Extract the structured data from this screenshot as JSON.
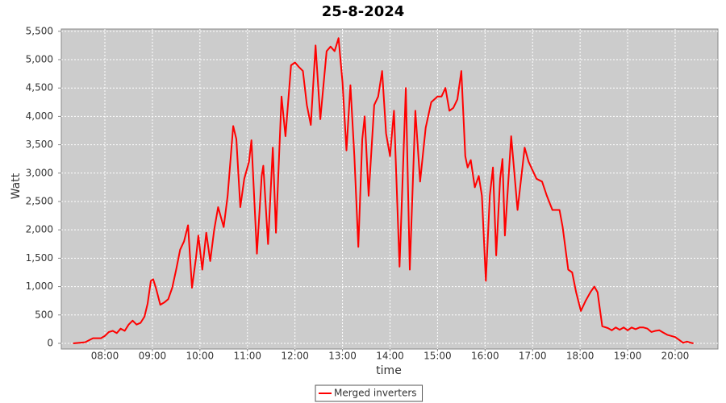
{
  "chart_data": {
    "type": "line",
    "title": "25-8-2024",
    "x_label": "time",
    "y_label": "Watt",
    "x": [
      "07:20",
      "07:35",
      "07:45",
      "07:55",
      "08:00",
      "08:05",
      "08:10",
      "08:15",
      "08:20",
      "08:25",
      "08:30",
      "08:35",
      "08:40",
      "08:45",
      "08:50",
      "08:54",
      "08:58",
      "09:01",
      "09:05",
      "09:10",
      "09:15",
      "09:20",
      "09:25",
      "09:30",
      "09:35",
      "09:40",
      "09:45",
      "09:50",
      "09:55",
      "09:58",
      "10:03",
      "10:08",
      "10:13",
      "10:18",
      "10:23",
      "10:30",
      "10:35",
      "10:42",
      "10:46",
      "10:51",
      "10:56",
      "11:02",
      "11:05",
      "11:12",
      "11:18",
      "11:20",
      "11:26",
      "11:32",
      "11:36",
      "11:43",
      "11:48",
      "11:55",
      "12:00",
      "12:05",
      "12:10",
      "12:15",
      "12:20",
      "12:26",
      "12:32",
      "12:40",
      "12:45",
      "12:50",
      "12:55",
      "13:00",
      "13:05",
      "13:10",
      "13:15",
      "13:20",
      "13:25",
      "13:28",
      "13:33",
      "13:40",
      "13:45",
      "13:50",
      "13:55",
      "14:00",
      "14:05",
      "14:12",
      "14:20",
      "14:25",
      "14:32",
      "14:38",
      "14:45",
      "14:52",
      "15:00",
      "15:05",
      "15:10",
      "15:15",
      "15:20",
      "15:25",
      "15:30",
      "15:35",
      "15:38",
      "15:42",
      "15:47",
      "15:52",
      "15:56",
      "16:01",
      "16:06",
      "16:10",
      "16:14",
      "16:19",
      "16:22",
      "16:25",
      "16:33",
      "16:41",
      "16:50",
      "16:55",
      "17:00",
      "17:05",
      "17:12",
      "17:18",
      "17:25",
      "17:30",
      "17:34",
      "17:38",
      "17:45",
      "17:50",
      "17:55",
      "18:01",
      "18:07",
      "18:13",
      "18:18",
      "18:22",
      "18:28",
      "18:35",
      "18:40",
      "18:45",
      "18:50",
      "18:55",
      "19:00",
      "19:05",
      "19:10",
      "19:15",
      "19:20",
      "19:25",
      "19:30",
      "19:35",
      "19:40",
      "19:45",
      "19:50",
      "19:55",
      "20:00",
      "20:05",
      "20:10",
      "20:15",
      "20:20",
      "20:23"
    ],
    "series": [
      {
        "name": "Merged inverters",
        "color": "#ff0000",
        "values": [
          0,
          20,
          90,
          90,
          130,
          200,
          220,
          180,
          260,
          220,
          330,
          400,
          330,
          360,
          470,
          700,
          1100,
          1130,
          950,
          680,
          720,
          780,
          980,
          1300,
          1650,
          1800,
          2080,
          980,
          1500,
          1900,
          1300,
          1950,
          1450,
          2000,
          2400,
          2050,
          2600,
          3830,
          3600,
          2400,
          2900,
          3200,
          3580,
          1580,
          2950,
          3130,
          1750,
          3450,
          1950,
          4350,
          3650,
          4900,
          4950,
          4870,
          4800,
          4200,
          3850,
          5250,
          3950,
          5150,
          5230,
          5150,
          5380,
          4600,
          3400,
          4550,
          3300,
          1700,
          3600,
          4000,
          2600,
          4200,
          4350,
          4800,
          3700,
          3300,
          4100,
          1350,
          4500,
          1300,
          4100,
          2850,
          3800,
          4250,
          4350,
          4350,
          4500,
          4100,
          4150,
          4300,
          4800,
          3300,
          3100,
          3230,
          2750,
          2950,
          2600,
          1100,
          2600,
          3100,
          1550,
          2900,
          3250,
          1900,
          3650,
          2350,
          3450,
          3200,
          3050,
          2900,
          2850,
          2600,
          2350,
          2350,
          2350,
          2050,
          1300,
          1250,
          900,
          570,
          750,
          900,
          1000,
          900,
          300,
          270,
          230,
          280,
          240,
          280,
          230,
          280,
          250,
          280,
          280,
          260,
          200,
          220,
          230,
          190,
          150,
          130,
          110,
          60,
          10,
          30,
          10,
          0
        ]
      }
    ],
    "xlim": [
      "07:05",
      "20:54"
    ],
    "xticks": [
      "08:00",
      "09:00",
      "10:00",
      "11:00",
      "12:00",
      "13:00",
      "14:00",
      "15:00",
      "16:00",
      "17:00",
      "18:00",
      "19:00",
      "20:00"
    ],
    "ylim": [
      -100,
      5540
    ],
    "yticks": [
      0,
      500,
      {
        "value": 1000,
        "label": "1,000"
      },
      {
        "value": 1500,
        "label": "1,500"
      },
      {
        "value": 2000,
        "label": "2,000"
      },
      {
        "value": 2500,
        "label": "2,500"
      },
      {
        "value": 3000,
        "label": "3,000"
      },
      {
        "value": 3500,
        "label": "3,500"
      },
      {
        "value": 4000,
        "label": "4,000"
      },
      {
        "value": 4500,
        "label": "4,500"
      },
      {
        "value": 5000,
        "label": "5,000"
      },
      {
        "value": 5500,
        "label": "5,500"
      }
    ],
    "grid": true,
    "plot_background": "#cccccc"
  }
}
